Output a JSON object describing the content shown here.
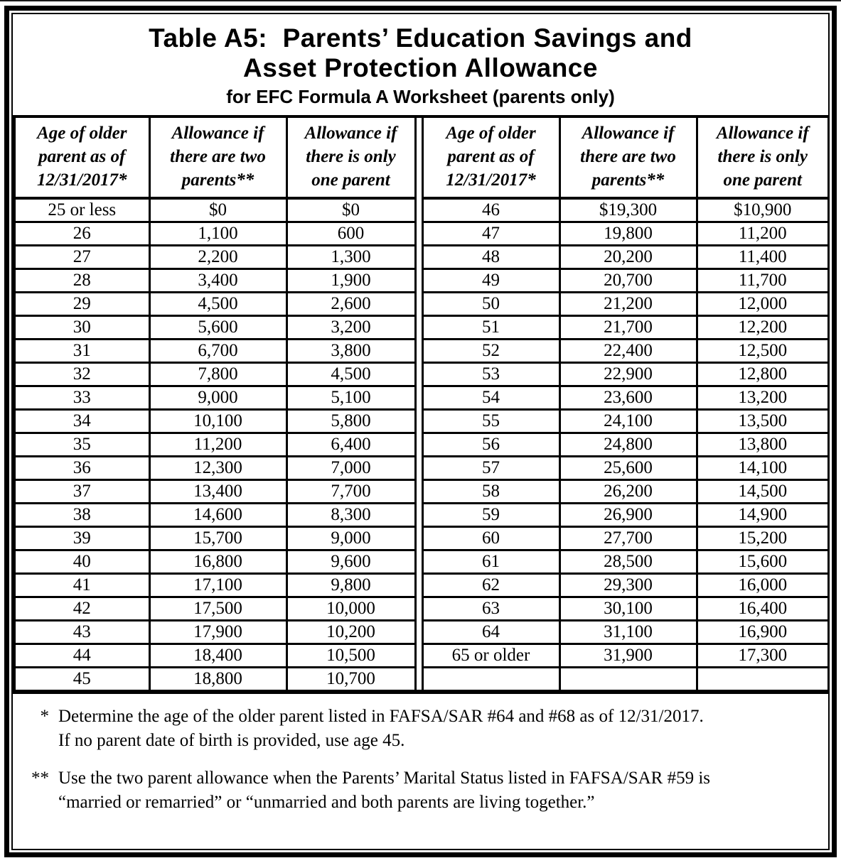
{
  "title": {
    "line1": "Table A5:  Parents’ Education Savings and",
    "line2": "Asset Protection Allowance",
    "subtitle": "for EFC Formula A Worksheet (parents only)"
  },
  "table": {
    "headers": [
      "Age of older\nparent as of\n12/31/2017*",
      "Allowance if\nthere are two\nparents**",
      "Allowance if\nthere is only\none parent"
    ],
    "left_rows": [
      [
        "25 or less",
        "$0",
        "$0"
      ],
      [
        "26",
        "1,100",
        "600"
      ],
      [
        "27",
        "2,200",
        "1,300"
      ],
      [
        "28",
        "3,400",
        "1,900"
      ],
      [
        "29",
        "4,500",
        "2,600"
      ],
      [
        "30",
        "5,600",
        "3,200"
      ],
      [
        "31",
        "6,700",
        "3,800"
      ],
      [
        "32",
        "7,800",
        "4,500"
      ],
      [
        "33",
        "9,000",
        "5,100"
      ],
      [
        "34",
        "10,100",
        "5,800"
      ],
      [
        "35",
        "11,200",
        "6,400"
      ],
      [
        "36",
        "12,300",
        "7,000"
      ],
      [
        "37",
        "13,400",
        "7,700"
      ],
      [
        "38",
        "14,600",
        "8,300"
      ],
      [
        "39",
        "15,700",
        "9,000"
      ],
      [
        "40",
        "16,800",
        "9,600"
      ],
      [
        "41",
        "17,100",
        "9,800"
      ],
      [
        "42",
        "17,500",
        "10,000"
      ],
      [
        "43",
        "17,900",
        "10,200"
      ],
      [
        "44",
        "18,400",
        "10,500"
      ],
      [
        "45",
        "18,800",
        "10,700"
      ]
    ],
    "right_rows": [
      [
        "46",
        "$19,300",
        "$10,900"
      ],
      [
        "47",
        "19,800",
        "11,200"
      ],
      [
        "48",
        "20,200",
        "11,400"
      ],
      [
        "49",
        "20,700",
        "11,700"
      ],
      [
        "50",
        "21,200",
        "12,000"
      ],
      [
        "51",
        "21,700",
        "12,200"
      ],
      [
        "52",
        "22,400",
        "12,500"
      ],
      [
        "53",
        "22,900",
        "12,800"
      ],
      [
        "54",
        "23,600",
        "13,200"
      ],
      [
        "55",
        "24,100",
        "13,500"
      ],
      [
        "56",
        "24,800",
        "13,800"
      ],
      [
        "57",
        "25,600",
        "14,100"
      ],
      [
        "58",
        "26,200",
        "14,500"
      ],
      [
        "59",
        "26,900",
        "14,900"
      ],
      [
        "60",
        "27,700",
        "15,200"
      ],
      [
        "61",
        "28,500",
        "15,600"
      ],
      [
        "62",
        "29,300",
        "16,000"
      ],
      [
        "63",
        "30,100",
        "16,400"
      ],
      [
        "64",
        "31,100",
        "16,900"
      ],
      [
        "65 or older",
        "31,900",
        "17,300"
      ],
      [
        "",
        "",
        ""
      ]
    ]
  },
  "footnotes": [
    {
      "marker": "*",
      "text": "Determine the age of the older parent listed in FAFSA/SAR #64 and #68 as of 12/31/2017.\nIf no parent date of birth is provided, use age 45."
    },
    {
      "marker": "**",
      "text": "Use the two parent allowance when the Parents’ Marital Status listed in FAFSA/SAR #59 is\n“married or remarried” or “unmarried and both parents are living together.”"
    }
  ],
  "colors": {
    "ink": "#000000",
    "paper": "#ffffff"
  }
}
